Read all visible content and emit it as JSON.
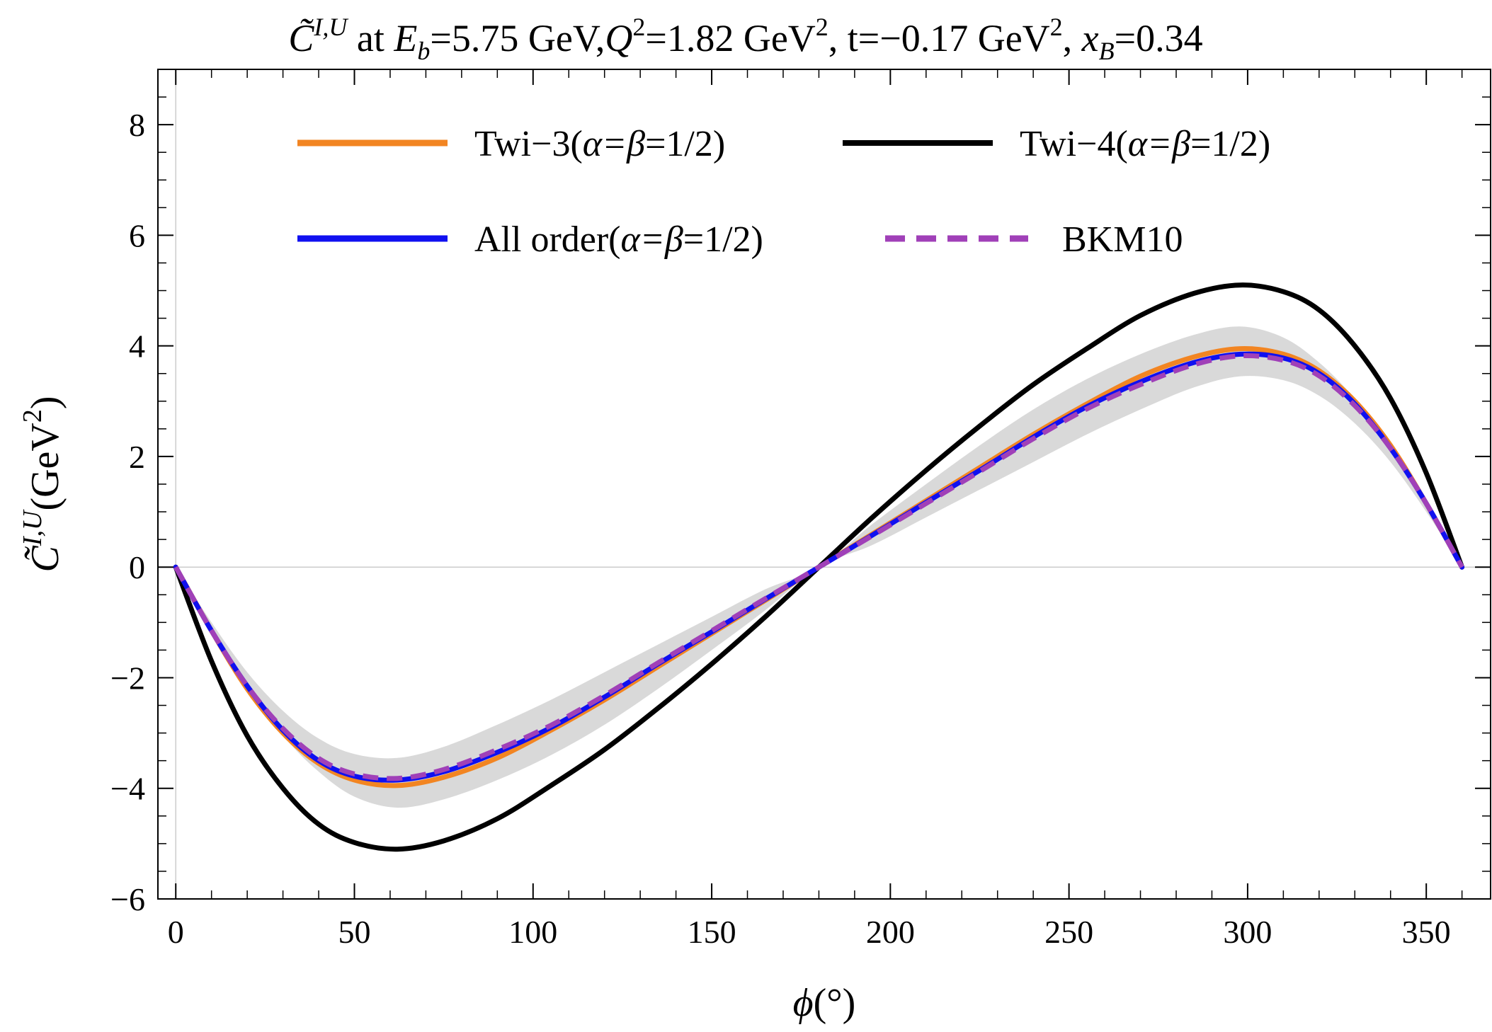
{
  "chart_data": {
    "type": "line",
    "title": {
      "c_symbol": "C̃",
      "c_superscript": "I,U",
      "at": " at ",
      "eb_symbol": "E",
      "eb_sub": "b",
      "eb_value": "=5.75 GeV,",
      "q2_symbol": "Q",
      "q2_sup": "2",
      "q2_value": "=1.82 GeV",
      "q2_unit_sup": "2",
      "t_value": ", t=−0.17 GeV",
      "t_unit_sup": "2",
      "comma": ", ",
      "xb_symbol": "x",
      "xb_sub": "B",
      "xb_value": "=0.34"
    },
    "xlabel": {
      "symbol": "ϕ",
      "unit": "(°)"
    },
    "ylabel": {
      "symbol": "C̃",
      "superscript": "I,U",
      "unit_open": "(GeV",
      "unit_sup": "2",
      "unit_close": ")"
    },
    "xlim": [
      -5,
      368
    ],
    "ylim": [
      -6,
      9
    ],
    "xticks": [
      0,
      50,
      100,
      150,
      200,
      250,
      300,
      350
    ],
    "xtick_labels": [
      "0",
      "50",
      "100",
      "150",
      "200",
      "250",
      "300",
      "350"
    ],
    "yticks": [
      -6,
      -4,
      -2,
      0,
      2,
      4,
      6,
      8
    ],
    "ytick_labels": [
      "−6",
      "−4",
      "−2",
      "0",
      "2",
      "4",
      "6",
      "8"
    ],
    "series": [
      {
        "name": "Twi-3(α=β=1/2)",
        "label_main": "Twi−3(",
        "label_greek": "α=β",
        "label_tail": "=1/2)",
        "color": "#F28522",
        "style": "solid",
        "x": [
          0,
          10,
          20,
          30,
          40,
          50,
          62,
          75,
          90,
          105,
          120,
          135,
          150,
          165,
          180,
          195,
          210,
          225,
          240,
          255,
          270,
          285,
          298,
          310,
          320,
          330,
          340,
          350,
          360
        ],
        "y": [
          0,
          -1.15,
          -2.2,
          -3.0,
          -3.55,
          -3.85,
          -3.95,
          -3.8,
          -3.45,
          -2.95,
          -2.4,
          -1.8,
          -1.2,
          -0.6,
          0,
          0.6,
          1.2,
          1.8,
          2.4,
          2.95,
          3.45,
          3.8,
          3.95,
          3.85,
          3.55,
          3.0,
          2.2,
          1.15,
          0
        ]
      },
      {
        "name": "Twi-4(α=β=1/2)",
        "label_main": "Twi−4(",
        "label_greek": "α=β",
        "label_tail": "=1/2)",
        "color": "#000000",
        "style": "solid",
        "x": [
          0,
          10,
          20,
          30,
          40,
          50,
          62,
          75,
          90,
          105,
          120,
          135,
          150,
          165,
          180,
          195,
          210,
          225,
          240,
          255,
          270,
          285,
          298,
          310,
          320,
          330,
          340,
          350,
          360
        ],
        "y": [
          0,
          -1.7,
          -3.05,
          -4.0,
          -4.65,
          -4.98,
          -5.1,
          -4.95,
          -4.55,
          -3.95,
          -3.3,
          -2.55,
          -1.75,
          -0.9,
          0,
          0.9,
          1.75,
          2.55,
          3.3,
          3.95,
          4.55,
          4.95,
          5.1,
          4.98,
          4.65,
          4.0,
          3.05,
          1.7,
          0
        ]
      },
      {
        "name": "All order(α=β=1/2)",
        "label_main": "All order(",
        "label_greek": "α=β",
        "label_tail": "=1/2)",
        "color": "#1010F0",
        "style": "solid",
        "x": [
          0,
          10,
          20,
          30,
          40,
          50,
          62,
          75,
          90,
          105,
          120,
          135,
          150,
          165,
          180,
          195,
          210,
          225,
          240,
          255,
          270,
          285,
          298,
          310,
          320,
          330,
          340,
          350,
          360
        ],
        "y": [
          0,
          -1.15,
          -2.15,
          -2.95,
          -3.5,
          -3.78,
          -3.85,
          -3.7,
          -3.35,
          -2.9,
          -2.35,
          -1.75,
          -1.17,
          -0.58,
          0,
          0.58,
          1.17,
          1.75,
          2.35,
          2.9,
          3.35,
          3.7,
          3.85,
          3.78,
          3.5,
          2.95,
          2.15,
          1.15,
          0
        ]
      },
      {
        "name": "BKM10",
        "label_main": "BKM10",
        "label_greek": "",
        "label_tail": "",
        "color": "#A040B8",
        "style": "dashed",
        "x": [
          0,
          10,
          20,
          30,
          40,
          50,
          62,
          75,
          90,
          105,
          120,
          135,
          150,
          165,
          180,
          195,
          210,
          225,
          240,
          255,
          270,
          285,
          298,
          310,
          320,
          330,
          340,
          350,
          360
        ],
        "y": [
          0,
          -1.15,
          -2.15,
          -2.92,
          -3.46,
          -3.74,
          -3.82,
          -3.66,
          -3.3,
          -2.86,
          -2.32,
          -1.73,
          -1.15,
          -0.57,
          0,
          0.57,
          1.15,
          1.73,
          2.32,
          2.86,
          3.3,
          3.66,
          3.82,
          3.74,
          3.46,
          2.92,
          2.15,
          1.15,
          0
        ]
      }
    ],
    "band": {
      "color": "#D9D9D9",
      "x": [
        0,
        10,
        20,
        30,
        40,
        50,
        62,
        75,
        90,
        105,
        120,
        135,
        150,
        165,
        180,
        195,
        210,
        225,
        240,
        255,
        270,
        285,
        298,
        310,
        320,
        330,
        340,
        350,
        360
      ],
      "upper": [
        0,
        -1.0,
        -1.9,
        -2.6,
        -3.1,
        -3.38,
        -3.45,
        -3.25,
        -2.85,
        -2.4,
        -1.9,
        -1.4,
        -0.9,
        -0.4,
        0,
        0.78,
        1.5,
        2.2,
        2.85,
        3.4,
        3.85,
        4.2,
        4.35,
        4.15,
        3.7,
        3.05,
        2.2,
        1.15,
        0
      ],
      "lower": [
        0,
        -1.15,
        -2.2,
        -3.05,
        -3.7,
        -4.15,
        -4.35,
        -4.2,
        -3.85,
        -3.4,
        -2.85,
        -2.2,
        -1.5,
        -0.78,
        0,
        0.4,
        0.9,
        1.4,
        1.9,
        2.4,
        2.85,
        3.25,
        3.45,
        3.38,
        3.1,
        2.6,
        1.9,
        1.0,
        0
      ]
    },
    "legend_position": "top",
    "grid": false
  }
}
